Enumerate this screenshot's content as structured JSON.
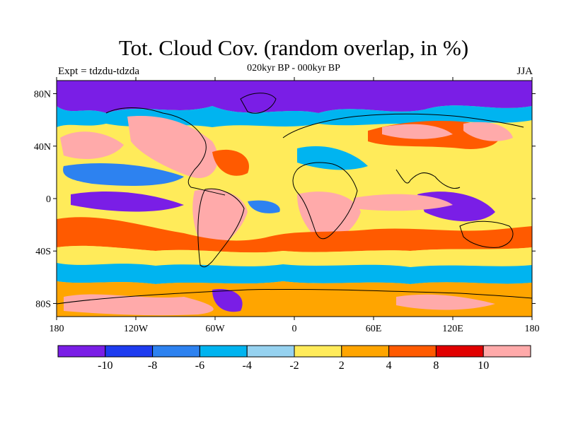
{
  "title": "Tot. Cloud Cov. (random overlap, in %)",
  "subtitle": "020kyr BP - 000kyr BP",
  "left_label": "Expt = tdzdu-tdzda",
  "right_label": "JJA",
  "map": {
    "type": "filled-contour-map",
    "lon_range": [
      -180,
      180
    ],
    "lat_range": [
      -90,
      90
    ],
    "lat_ticks": [
      "80N",
      "40N",
      "0",
      "40S",
      "80S"
    ],
    "lat_tick_values": [
      80,
      40,
      0,
      -40,
      -80
    ],
    "lon_ticks": [
      "180",
      "120W",
      "60W",
      "0",
      "60E",
      "120E",
      "180"
    ],
    "lon_tick_values": [
      -180,
      -120,
      -60,
      0,
      60,
      120,
      180
    ]
  },
  "colorbar": {
    "labels": [
      "-10",
      "-8",
      "-6",
      "-4",
      "-2",
      "2",
      "4",
      "8",
      "10"
    ],
    "colors": [
      "#7a1ee6",
      "#1e3cf0",
      "#2d82f0",
      "#00b4f0",
      "#96d2f0",
      "#ffeb5a",
      "#ffa500",
      "#ff5a00",
      "#e10000",
      "#ffaaaa"
    ]
  }
}
